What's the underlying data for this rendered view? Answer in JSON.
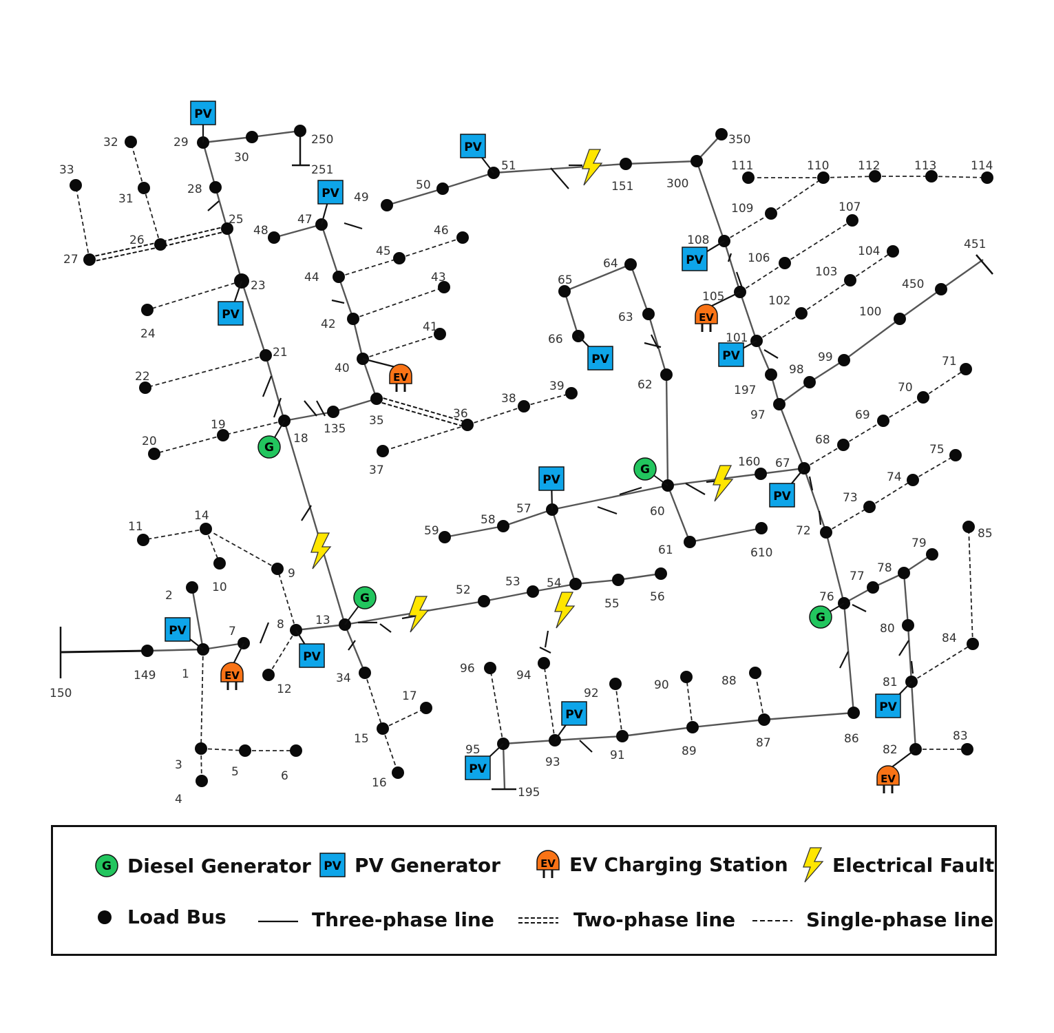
{
  "colors": {
    "diesel": "#22c55e",
    "pv": "#0ea5e9",
    "ev": "#f97316",
    "fault": "#ffe600",
    "line": "#555555",
    "bus": "#0a0a0a"
  },
  "markers": {
    "diesel_text": "G",
    "pv_text": "PV",
    "ev_text": "EV"
  },
  "legend": {
    "diesel": "Diesel Generator",
    "pv": "PV Generator",
    "ev": "EV Charging Station",
    "fault": "Electrical Fault",
    "load": "Load Bus",
    "three_phase": "Three-phase line",
    "two_phase": "Two-phase line",
    "single_phase": "Single-phase line"
  },
  "buses": [
    "1",
    "2",
    "3",
    "4",
    "5",
    "6",
    "7",
    "8",
    "9",
    "10",
    "11",
    "12",
    "13",
    "14",
    "15",
    "16",
    "17",
    "18",
    "19",
    "20",
    "21",
    "22",
    "23",
    "24",
    "25",
    "26",
    "27",
    "28",
    "29",
    "30",
    "31",
    "32",
    "33",
    "34",
    "35",
    "36",
    "37",
    "38",
    "39",
    "40",
    "41",
    "42",
    "43",
    "44",
    "45",
    "46",
    "47",
    "48",
    "49",
    "50",
    "51",
    "52",
    "53",
    "54",
    "55",
    "56",
    "57",
    "58",
    "59",
    "60",
    "61",
    "62",
    "63",
    "64",
    "65",
    "66",
    "67",
    "68",
    "69",
    "70",
    "71",
    "72",
    "73",
    "74",
    "75",
    "76",
    "77",
    "78",
    "79",
    "80",
    "81",
    "82",
    "83",
    "84",
    "85",
    "86",
    "87",
    "88",
    "89",
    "90",
    "91",
    "92",
    "93",
    "94",
    "95",
    "96",
    "97",
    "98",
    "99",
    "100",
    "101",
    "102",
    "103",
    "104",
    "105",
    "106",
    "107",
    "108",
    "109",
    "110",
    "111",
    "112",
    "113",
    "114",
    "135",
    "149",
    "150",
    "151",
    "160",
    "195",
    "197",
    "250",
    "251",
    "300",
    "350",
    "450",
    "451",
    "610"
  ],
  "lines_three_phase": [
    [
      "150",
      "149"
    ],
    [
      "149",
      "1"
    ],
    [
      "1",
      "2"
    ],
    [
      "1",
      "7"
    ],
    [
      "8",
      "13"
    ],
    [
      "13",
      "18"
    ],
    [
      "18",
      "135"
    ],
    [
      "135",
      "35"
    ],
    [
      "18",
      "21"
    ],
    [
      "21",
      "23"
    ],
    [
      "23",
      "25"
    ],
    [
      "25",
      "28"
    ],
    [
      "28",
      "29"
    ],
    [
      "29",
      "30"
    ],
    [
      "30",
      "250"
    ],
    [
      "13",
      "52"
    ],
    [
      "52",
      "53"
    ],
    [
      "53",
      "54"
    ],
    [
      "54",
      "55"
    ],
    [
      "55",
      "56"
    ],
    [
      "54",
      "57"
    ],
    [
      "57",
      "58"
    ],
    [
      "58",
      "59"
    ],
    [
      "57",
      "60"
    ],
    [
      "60",
      "62"
    ],
    [
      "60",
      "61"
    ],
    [
      "61",
      "610"
    ],
    [
      "60",
      "160"
    ],
    [
      "160",
      "67"
    ],
    [
      "67",
      "97"
    ],
    [
      "97",
      "98"
    ],
    [
      "98",
      "99"
    ],
    [
      "99",
      "100"
    ],
    [
      "100",
      "450"
    ],
    [
      "450",
      "451"
    ],
    [
      "97",
      "197"
    ],
    [
      "197",
      "101"
    ],
    [
      "101",
      "105"
    ],
    [
      "105",
      "108"
    ],
    [
      "108",
      "300"
    ],
    [
      "300",
      "350"
    ],
    [
      "300",
      "151"
    ],
    [
      "151",
      "51"
    ],
    [
      "51",
      "50"
    ],
    [
      "50",
      "49"
    ],
    [
      "62",
      "63"
    ],
    [
      "63",
      "64"
    ],
    [
      "64",
      "65"
    ],
    [
      "65",
      "66"
    ],
    [
      "67",
      "72"
    ],
    [
      "72",
      "76"
    ],
    [
      "76",
      "77"
    ],
    [
      "77",
      "78"
    ],
    [
      "78",
      "80"
    ],
    [
      "80",
      "81"
    ],
    [
      "76",
      "86"
    ],
    [
      "86",
      "87"
    ],
    [
      "87",
      "89"
    ],
    [
      "89",
      "91"
    ],
    [
      "91",
      "93"
    ],
    [
      "93",
      "95"
    ],
    [
      "95",
      "195"
    ],
    [
      "13",
      "34"
    ],
    [
      "35",
      "40"
    ],
    [
      "40",
      "42"
    ],
    [
      "42",
      "44"
    ],
    [
      "44",
      "47"
    ],
    [
      "47",
      "48"
    ],
    [
      "78",
      "79"
    ],
    [
      "82",
      "81"
    ]
  ],
  "lines_two_phase": [
    [
      "25",
      "26"
    ],
    [
      "26",
      "27"
    ],
    [
      "35",
      "36"
    ]
  ],
  "lines_single_phase": [
    [
      "1",
      "3"
    ],
    [
      "3",
      "4"
    ],
    [
      "3",
      "5"
    ],
    [
      "5",
      "6"
    ],
    [
      "8",
      "9"
    ],
    [
      "9",
      "14"
    ],
    [
      "14",
      "11"
    ],
    [
      "14",
      "10"
    ],
    [
      "8",
      "12"
    ],
    [
      "34",
      "15"
    ],
    [
      "15",
      "17"
    ],
    [
      "15",
      "16"
    ],
    [
      "18",
      "19"
    ],
    [
      "19",
      "20"
    ],
    [
      "21",
      "22"
    ],
    [
      "23",
      "24"
    ],
    [
      "26",
      "31"
    ],
    [
      "31",
      "32"
    ],
    [
      "27",
      "33"
    ],
    [
      "36",
      "38"
    ],
    [
      "38",
      "39"
    ],
    [
      "36",
      "37"
    ],
    [
      "40",
      "41"
    ],
    [
      "42",
      "43"
    ],
    [
      "44",
      "45"
    ],
    [
      "45",
      "46"
    ],
    [
      "93",
      "94"
    ],
    [
      "95",
      "96"
    ],
    [
      "91",
      "92"
    ],
    [
      "89",
      "90"
    ],
    [
      "87",
      "88"
    ],
    [
      "81",
      "84"
    ],
    [
      "84",
      "85"
    ],
    [
      "82",
      "83"
    ],
    [
      "67",
      "68"
    ],
    [
      "68",
      "69"
    ],
    [
      "69",
      "70"
    ],
    [
      "70",
      "71"
    ],
    [
      "72",
      "73"
    ],
    [
      "73",
      "74"
    ],
    [
      "74",
      "75"
    ],
    [
      "101",
      "102"
    ],
    [
      "102",
      "103"
    ],
    [
      "103",
      "104"
    ],
    [
      "105",
      "106"
    ],
    [
      "106",
      "107"
    ],
    [
      "108",
      "109"
    ],
    [
      "109",
      "110"
    ],
    [
      "110",
      "111"
    ],
    [
      "110",
      "112"
    ],
    [
      "112",
      "113"
    ],
    [
      "113",
      "114"
    ]
  ],
  "diesel_at": [
    "18",
    "13",
    "60",
    "76"
  ],
  "pv_at": [
    "1",
    "8",
    "23",
    "29",
    "47",
    "51",
    "57",
    "66",
    "67",
    "95",
    "93",
    "108",
    "101",
    "81"
  ],
  "ev_at": [
    "7",
    "40",
    "105",
    "82"
  ],
  "fault_count": 5
}
